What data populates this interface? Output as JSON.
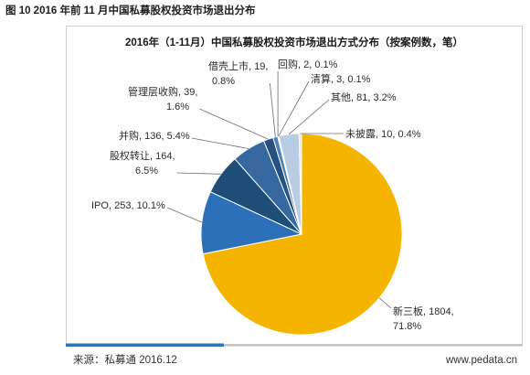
{
  "figure_caption": "图 10 2016 年前 11 月中国私募股权投资市场退出分布",
  "chart_data": {
    "type": "pie",
    "title": "2016年（1-11月）中国私募股权投资市场退出方式分布（按案例数，笔）",
    "categories": [
      "新三板",
      "IPO",
      "股权转让",
      "并购",
      "管理层收购",
      "借壳上市",
      "回购",
      "清算",
      "其他",
      "未披露"
    ],
    "values": [
      1804,
      253,
      164,
      136,
      39,
      19,
      2,
      3,
      81,
      10
    ],
    "percents": [
      "71.8%",
      "10.1%",
      "6.5%",
      "5.4%",
      "1.6%",
      "0.8%",
      "0.1%",
      "0.1%",
      "3.2%",
      "0.4%"
    ],
    "colors": [
      "#F5B400",
      "#2B70B8",
      "#1E4D78",
      "#36689F",
      "#25507F",
      "#4F81BD",
      "#7F9FCF",
      "#95B3D7",
      "#B8CCE4",
      "#DCE6F1"
    ]
  },
  "footer": {
    "source": "来源：私募通 2016.12",
    "website": "www.pedata.cn",
    "bar_accent_color": "#2E75B6",
    "bar_base_color": "#BFBFBF"
  }
}
